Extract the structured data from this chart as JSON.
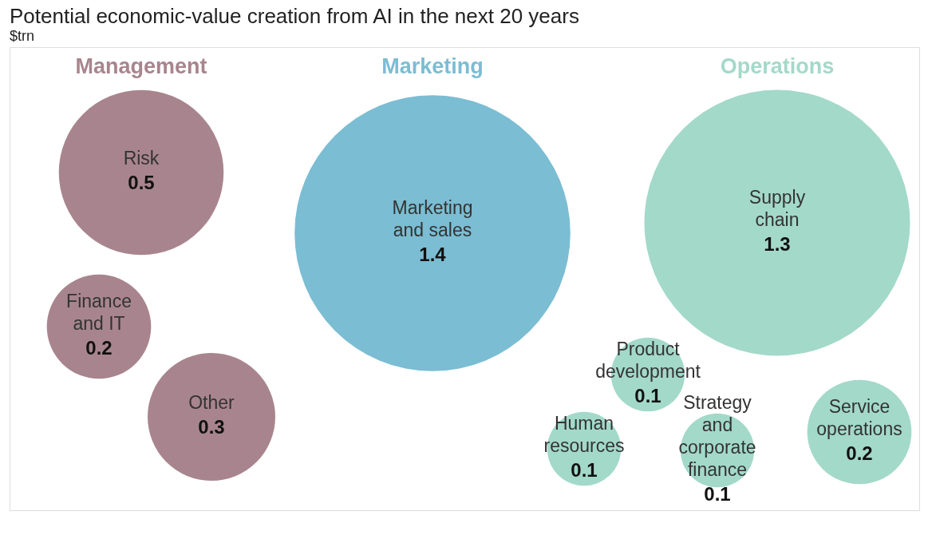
{
  "chart_data": {
    "type": "other",
    "title": "Potential economic-value creation from AI in the next 20 years",
    "subtitle": "$trn",
    "categories": [
      "Risk",
      "Finance and IT",
      "Other",
      "Marketing and sales",
      "Supply chain",
      "Product development",
      "Human resources",
      "Strategy and corporate finance",
      "Service operations"
    ],
    "series": [
      {
        "name": "Management",
        "color": "#a8858e",
        "values": [
          0.5,
          0.2,
          0.3,
          null,
          null,
          null,
          null,
          null,
          null
        ]
      },
      {
        "name": "Marketing",
        "color": "#7bbdd3",
        "values": [
          null,
          null,
          null,
          1.4,
          null,
          null,
          null,
          null,
          null
        ]
      },
      {
        "name": "Operations",
        "color": "#a3d9c9",
        "values": [
          null,
          null,
          null,
          null,
          1.3,
          0.1,
          0.1,
          0.1,
          0.2
        ]
      }
    ],
    "data_labels": true
  }
}
